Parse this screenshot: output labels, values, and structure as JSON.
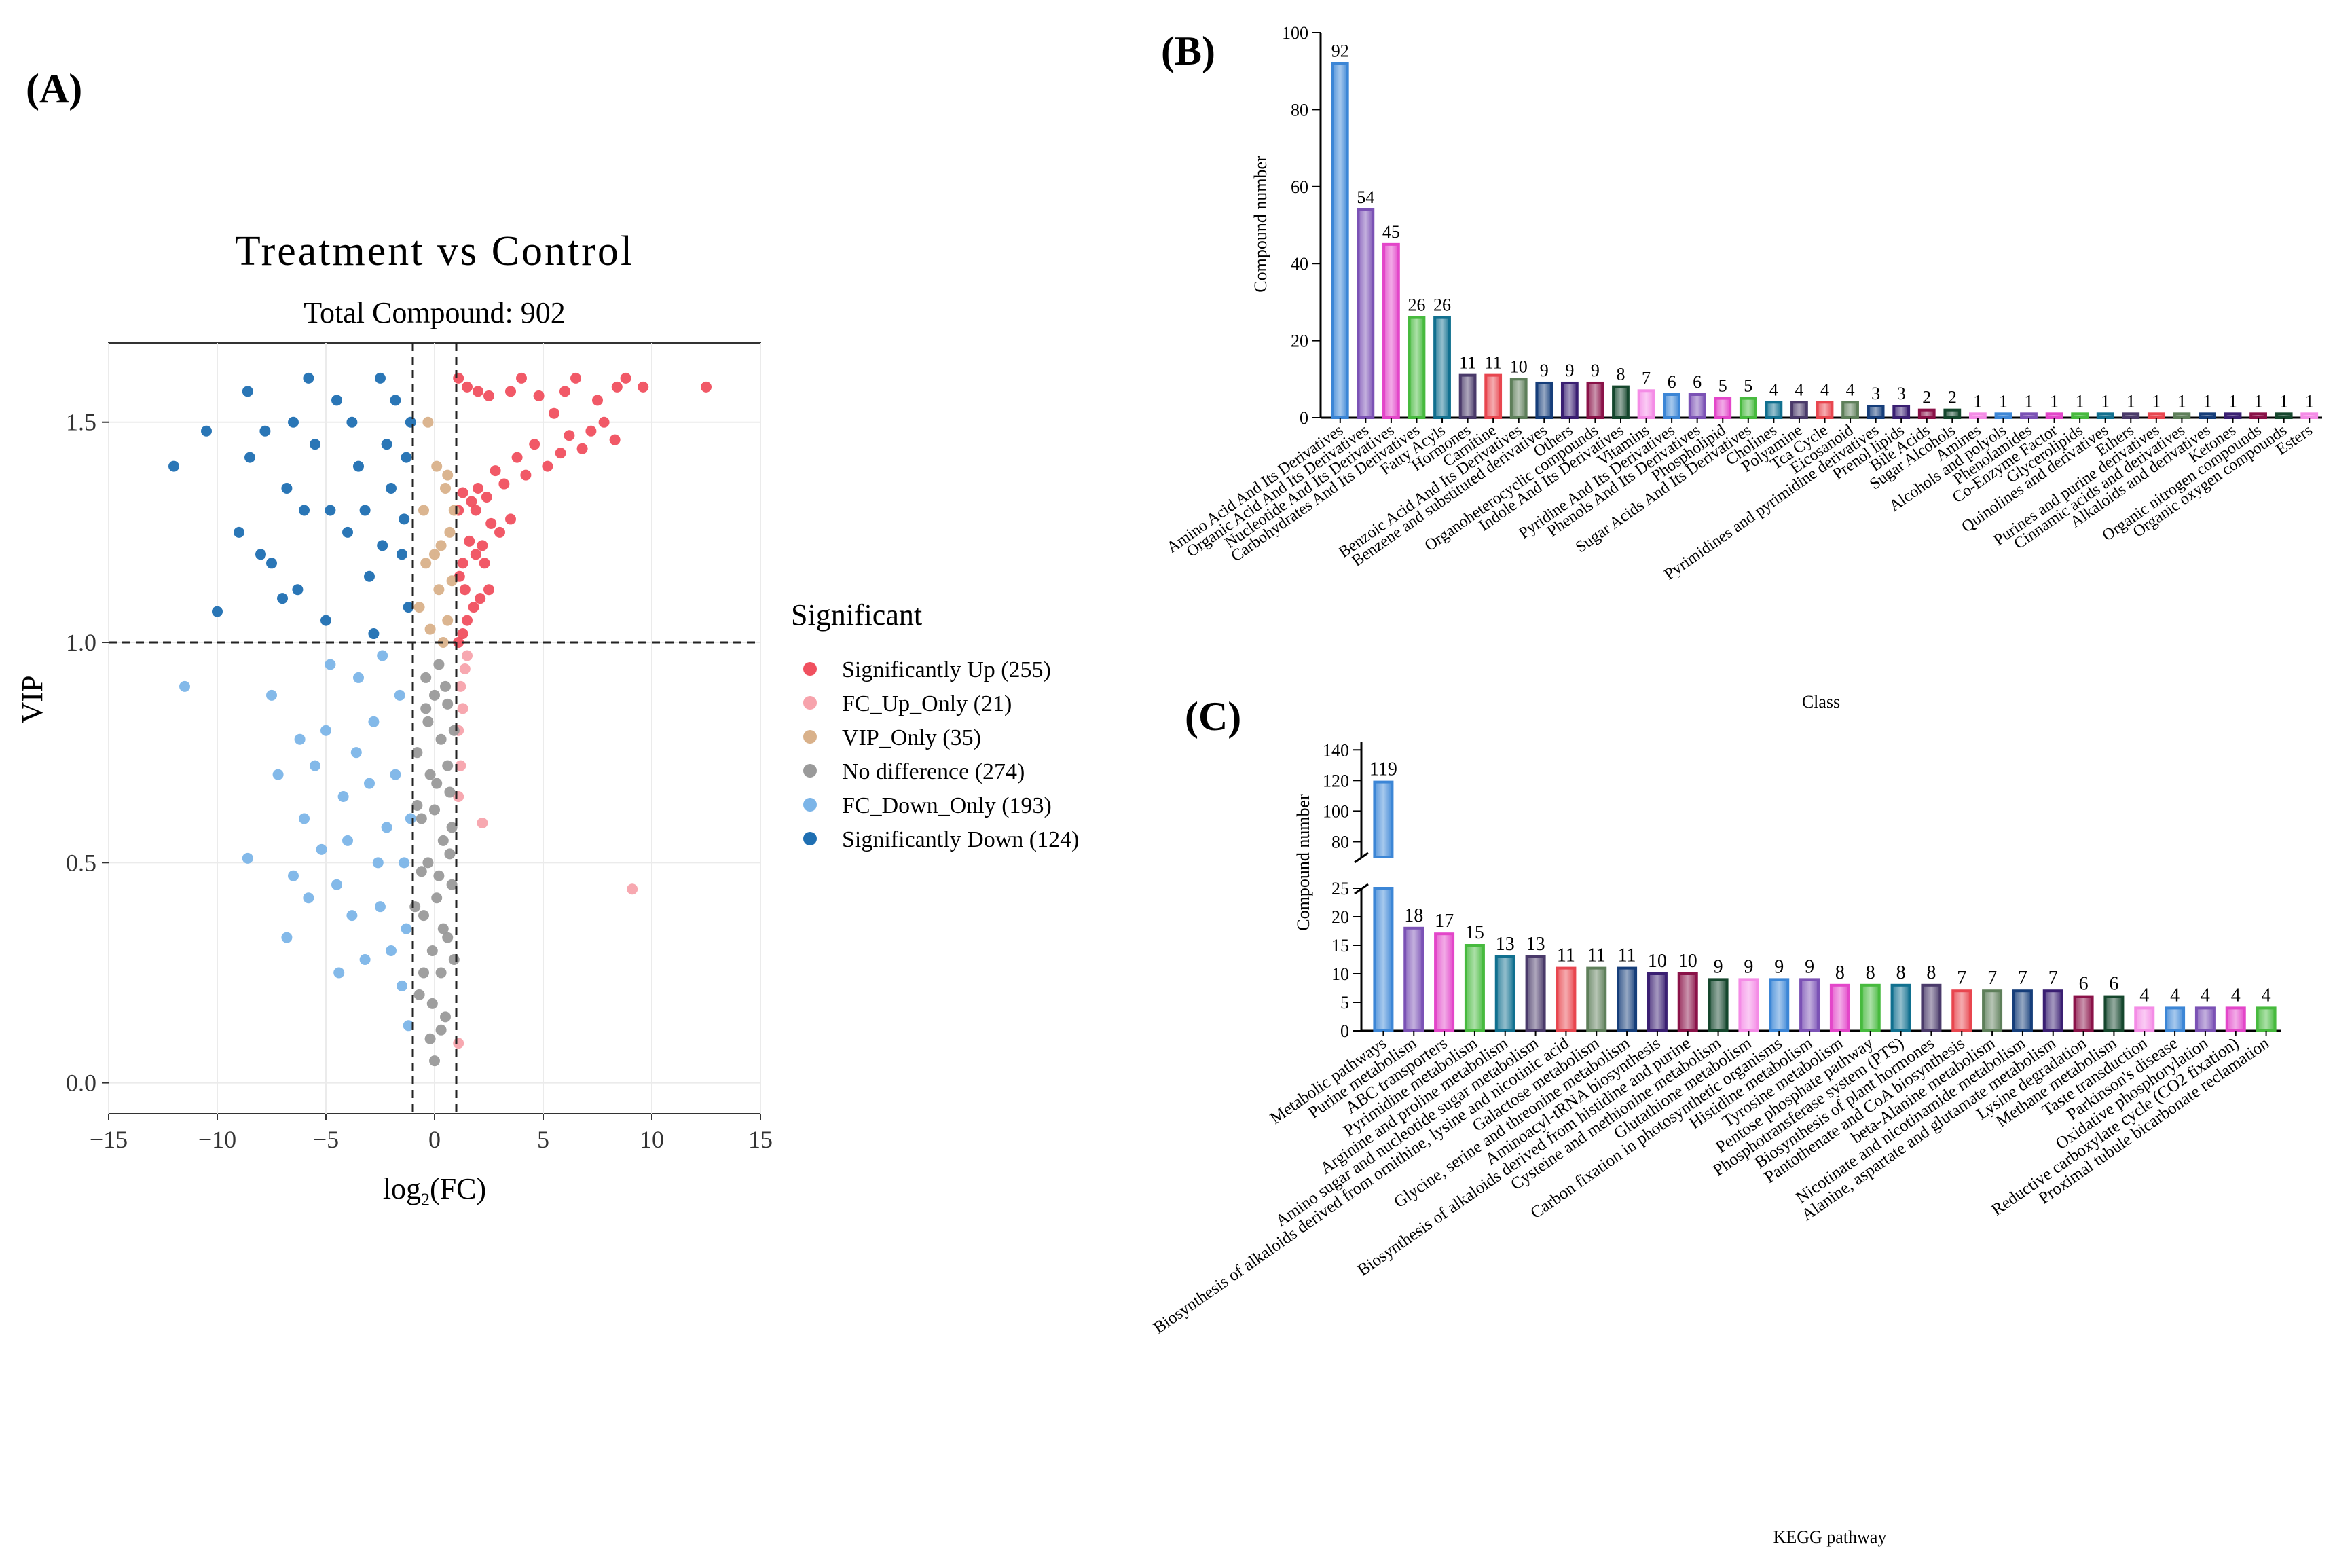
{
  "panels": {
    "a_label": "(A)",
    "b_label": "(B)",
    "c_label": "(C)"
  },
  "colors": {
    "significantly_up": "#F0505F",
    "fc_up_only": "#F7A3AC",
    "vip_only": "#D9B18A",
    "no_difference": "#9A9A9A",
    "fc_down_only": "#7CB5E8",
    "significantly_down": "#1F6FB2",
    "bar_palette": [
      "#3C86D6",
      "#7B52B5",
      "#E346C9",
      "#47BA3E",
      "#11708F",
      "#4A3A6A",
      "#E8464F",
      "#5E7F5A",
      "#163E7A",
      "#3A1F72",
      "#8A1248",
      "#15472D",
      "#F48CE6"
    ]
  },
  "chart_data": [
    {
      "id": "A",
      "type": "scatter",
      "title": "Treatment vs Control",
      "subtitle": "Total Compound: 902",
      "xlabel_main": "log",
      "xlabel_sub": "2",
      "xlabel_tail": "(FC)",
      "ylabel": "VIP",
      "xlim": [
        -15,
        15
      ],
      "ylim": [
        -0.07,
        1.68
      ],
      "xticks": [
        -15,
        -10,
        -5,
        0,
        5,
        10,
        15
      ],
      "xtick_labels": [
        "−15",
        "−10",
        "−5",
        "0",
        "5",
        "10",
        "15"
      ],
      "yticks": [
        0.0,
        0.5,
        1.0,
        1.5
      ],
      "ytick_labels": [
        "0.0",
        "0.5",
        "1.0",
        "1.5"
      ],
      "thresholds": {
        "fc": [
          -1,
          1
        ],
        "vip": 1.0
      },
      "grid": true,
      "legend_title": "Significant",
      "legend": [
        {
          "key": "significantly_up",
          "label": "Significantly Up (255)"
        },
        {
          "key": "fc_up_only",
          "label": "FC_Up_Only (21)"
        },
        {
          "key": "vip_only",
          "label": "VIP_Only (35)"
        },
        {
          "key": "no_difference",
          "label": "No difference (274)"
        },
        {
          "key": "fc_down_only",
          "label": "FC_Down_Only (193)"
        },
        {
          "key": "significantly_down",
          "label": "Significantly Down (124)"
        }
      ],
      "series": [
        {
          "key": "significantly_up",
          "count": 255,
          "points": [
            [
              12.5,
              1.58
            ],
            [
              9.6,
              1.58
            ],
            [
              8.4,
              1.58
            ],
            [
              8.8,
              1.6
            ],
            [
              7.5,
              1.55
            ],
            [
              6.5,
              1.6
            ],
            [
              6,
              1.57
            ],
            [
              5.5,
              1.52
            ],
            [
              4.8,
              1.56
            ],
            [
              4,
              1.6
            ],
            [
              3.5,
              1.57
            ],
            [
              2.5,
              1.56
            ],
            [
              2,
              1.57
            ],
            [
              1.5,
              1.58
            ],
            [
              1.1,
              1.6
            ],
            [
              8.3,
              1.46
            ],
            [
              7.8,
              1.5
            ],
            [
              7.2,
              1.48
            ],
            [
              6.8,
              1.44
            ],
            [
              6.2,
              1.47
            ],
            [
              5.8,
              1.43
            ],
            [
              5.2,
              1.4
            ],
            [
              4.6,
              1.45
            ],
            [
              4.2,
              1.38
            ],
            [
              3.8,
              1.42
            ],
            [
              3.2,
              1.36
            ],
            [
              2.8,
              1.39
            ],
            [
              2.4,
              1.33
            ],
            [
              2,
              1.35
            ],
            [
              1.7,
              1.32
            ],
            [
              1.3,
              1.34
            ],
            [
              1.1,
              1.3
            ],
            [
              3.5,
              1.28
            ],
            [
              3,
              1.25
            ],
            [
              2.6,
              1.27
            ],
            [
              2.2,
              1.22
            ],
            [
              1.9,
              1.2
            ],
            [
              1.6,
              1.23
            ],
            [
              1.3,
              1.18
            ],
            [
              1.15,
              1.15
            ],
            [
              2.5,
              1.12
            ],
            [
              2.1,
              1.1
            ],
            [
              1.8,
              1.08
            ],
            [
              1.5,
              1.05
            ],
            [
              1.3,
              1.02
            ],
            [
              1.1,
              1.0
            ],
            [
              1.9,
              1.3
            ],
            [
              1.4,
              1.12
            ],
            [
              2.3,
              1.18
            ]
          ]
        },
        {
          "key": "fc_up_only",
          "count": 21,
          "points": [
            [
              9.1,
              0.44
            ],
            [
              2.2,
              0.59
            ],
            [
              1.4,
              0.94
            ],
            [
              1.2,
              0.9
            ],
            [
              1.5,
              0.97
            ],
            [
              1.1,
              0.8
            ],
            [
              1.2,
              0.72
            ],
            [
              1.3,
              0.85
            ],
            [
              1.1,
              0.65
            ],
            [
              1.1,
              0.09
            ]
          ]
        },
        {
          "key": "vip_only",
          "count": 35,
          "points": [
            [
              0.5,
              1.35
            ],
            [
              0.3,
              1.22
            ],
            [
              0.7,
              1.25
            ],
            [
              0.2,
              1.12
            ],
            [
              -0.4,
              1.18
            ],
            [
              0.6,
              1.05
            ],
            [
              -0.2,
              1.03
            ],
            [
              0.9,
              1.3
            ],
            [
              0.1,
              1.4
            ],
            [
              -0.7,
              1.08
            ],
            [
              0.4,
              1.0
            ],
            [
              0.8,
              1.14
            ],
            [
              -0.5,
              1.3
            ],
            [
              0.0,
              1.2
            ],
            [
              0.6,
              1.38
            ],
            [
              -0.3,
              1.5
            ]
          ]
        },
        {
          "key": "no_difference",
          "count": 274,
          "points": [
            [
              0.5,
              0.9
            ],
            [
              -0.4,
              0.85
            ],
            [
              0.3,
              0.78
            ],
            [
              -0.2,
              0.7
            ],
            [
              0.7,
              0.66
            ],
            [
              0,
              0.62
            ],
            [
              -0.6,
              0.6
            ],
            [
              0.4,
              0.55
            ],
            [
              -0.3,
              0.5
            ],
            [
              0.8,
              0.45
            ],
            [
              0.1,
              0.42
            ],
            [
              -0.5,
              0.38
            ],
            [
              0.6,
              0.33
            ],
            [
              -0.1,
              0.3
            ],
            [
              0.3,
              0.25
            ],
            [
              -0.7,
              0.2
            ],
            [
              0.5,
              0.15
            ],
            [
              0,
              0.05
            ],
            [
              -0.2,
              0.1
            ],
            [
              0.9,
              0.8
            ],
            [
              -0.8,
              0.75
            ],
            [
              0.2,
              0.95
            ],
            [
              -0.4,
              0.92
            ],
            [
              0.6,
              0.72
            ],
            [
              -0.6,
              0.48
            ],
            [
              0.4,
              0.35
            ],
            [
              0.8,
              0.58
            ],
            [
              -0.9,
              0.4
            ],
            [
              0.1,
              0.68
            ],
            [
              -0.3,
              0.82
            ],
            [
              0.7,
              0.52
            ],
            [
              -0.5,
              0.25
            ],
            [
              0.2,
              0.47
            ],
            [
              0.9,
              0.28
            ],
            [
              -0.8,
              0.63
            ],
            [
              0.0,
              0.88
            ],
            [
              -0.1,
              0.18
            ],
            [
              0.6,
              0.86
            ],
            [
              0.3,
              0.12
            ]
          ]
        },
        {
          "key": "fc_down_only",
          "count": 193,
          "points": [
            [
              -11.5,
              0.9
            ],
            [
              -8.6,
              0.51
            ],
            [
              -7.5,
              0.88
            ],
            [
              -6.8,
              0.33
            ],
            [
              -6.5,
              0.47
            ],
            [
              -6,
              0.6
            ],
            [
              -5.5,
              0.72
            ],
            [
              -5,
              0.8
            ],
            [
              -4.5,
              0.45
            ],
            [
              -4,
              0.55
            ],
            [
              -3.5,
              0.92
            ],
            [
              -3,
              0.68
            ],
            [
              -2.5,
              0.4
            ],
            [
              -2,
              0.3
            ],
            [
              -1.5,
              0.22
            ],
            [
              -1.2,
              0.13
            ],
            [
              -4.8,
              0.95
            ],
            [
              -3.8,
              0.38
            ],
            [
              -2.8,
              0.82
            ],
            [
              -2.2,
              0.58
            ],
            [
              -1.8,
              0.7
            ],
            [
              -1.4,
              0.5
            ],
            [
              -5.8,
              0.42
            ],
            [
              -6.2,
              0.78
            ],
            [
              -4.2,
              0.65
            ],
            [
              -3.2,
              0.28
            ],
            [
              -2.6,
              0.5
            ],
            [
              -1.6,
              0.88
            ],
            [
              -7.2,
              0.7
            ],
            [
              -5.2,
              0.53
            ],
            [
              -3.6,
              0.75
            ],
            [
              -1.3,
              0.35
            ],
            [
              -2.4,
              0.97
            ],
            [
              -4.4,
              0.25
            ],
            [
              -1.1,
              0.6
            ]
          ]
        },
        {
          "key": "significantly_down",
          "count": 124,
          "points": [
            [
              -12,
              1.4
            ],
            [
              -10.5,
              1.48
            ],
            [
              -10,
              1.07
            ],
            [
              -9,
              1.25
            ],
            [
              -8.5,
              1.42
            ],
            [
              -8.6,
              1.57
            ],
            [
              -8,
              1.2
            ],
            [
              -7.5,
              1.18
            ],
            [
              -7,
              1.1
            ],
            [
              -6.8,
              1.35
            ],
            [
              -6.5,
              1.5
            ],
            [
              -6,
              1.3
            ],
            [
              -5.5,
              1.45
            ],
            [
              -5,
              1.05
            ],
            [
              -4.5,
              1.55
            ],
            [
              -4,
              1.25
            ],
            [
              -3.5,
              1.4
            ],
            [
              -3,
              1.15
            ],
            [
              -2.5,
              1.6
            ],
            [
              -2,
              1.35
            ],
            [
              -1.5,
              1.2
            ],
            [
              -1.2,
              1.08
            ],
            [
              -1.1,
              1.5
            ],
            [
              -5.8,
              1.6
            ],
            [
              -4.8,
              1.3
            ],
            [
              -3.8,
              1.5
            ],
            [
              -2.8,
              1.02
            ],
            [
              -2.2,
              1.45
            ],
            [
              -1.8,
              1.55
            ],
            [
              -1.4,
              1.28
            ],
            [
              -7.8,
              1.48
            ],
            [
              -6.3,
              1.12
            ],
            [
              -3.2,
              1.3
            ],
            [
              -2.4,
              1.22
            ],
            [
              -1.3,
              1.42
            ]
          ]
        }
      ]
    },
    {
      "id": "B",
      "type": "bar",
      "xlabel": "Class",
      "ylabel": "Compound number",
      "ylim": [
        0,
        100
      ],
      "yticks": [
        0,
        20,
        40,
        60,
        80,
        100
      ],
      "categories": [
        "Amino Acid And Its Derivatives",
        "Organic Acid And Its Derivatives",
        "Nucleotide And Its Derivatives",
        "Carbohydrates And Its Derivatives",
        "Fatty Acyls",
        "Hormones",
        "Carnitine",
        "Benzoic Acid And Its Derivatives",
        "Benzene and substituted derivatives",
        "Others",
        "Organoheterocyclic compounds",
        "Indole And Its Derivatives",
        "Vitamins",
        "Pyridine And Its Derivatives",
        "Phenols And Its Derivatives",
        "Phospholipid",
        "Sugar Acids And Its Derivatives",
        "Cholines",
        "Polyamine",
        "Tca Cycle",
        "Eicosanoid",
        "Pyrimidines and pyrimidine derivatives",
        "Prenol lipids",
        "Bile Acids",
        "Sugar Alcohols",
        "Amines",
        "Alcohols and polyols",
        "Phenolamides",
        "Co-Enzyme Factor",
        "Glycerolipids",
        "Quinolines and derivatives",
        "Ethers",
        "Purines and purine derivatives",
        "Cinnamic acids and derivatives",
        "Alkaloids and derivatives",
        "Ketones",
        "Organic nitrogen compounds",
        "Organic oxygen compounds",
        "Esters"
      ],
      "values": [
        92,
        54,
        45,
        26,
        26,
        11,
        11,
        10,
        9,
        9,
        9,
        8,
        7,
        6,
        6,
        5,
        5,
        4,
        4,
        4,
        4,
        3,
        3,
        2,
        2,
        1,
        1,
        1,
        1,
        1,
        1,
        1,
        1,
        1,
        1,
        1,
        1,
        1,
        1
      ]
    },
    {
      "id": "C",
      "type": "bar",
      "xlabel": "KEGG pathway",
      "ylabel": "Compound number",
      "y_break": [
        25,
        70
      ],
      "ylim_lower": [
        0,
        25
      ],
      "ylim_upper": [
        70,
        145
      ],
      "yticks_lower": [
        0,
        5,
        10,
        15,
        20,
        25
      ],
      "yticks_upper": [
        80,
        100,
        120,
        140
      ],
      "categories": [
        "Metabolic pathways",
        "Purine metabolism",
        "ABC transporters",
        "Pyrimidine metabolism",
        "Arginine and proline metabolism",
        "Amino sugar and nucleotide sugar metabolism",
        "Biosynthesis of alkaloids derived from ornithine, lysine and nicotinic acid",
        "Galactose metabolism",
        "Glycine, serine and threonine metabolism",
        "Aminoacyl-tRNA biosynthesis",
        "Biosynthesis of alkaloids derived from histidine and purine",
        "Cysteine and methionine metabolism",
        "Glutathione metabolism",
        "Carbon fixation in photosynthetic organisms",
        "Histidine metabolism",
        "Tyrosine metabolism",
        "Pentose phosphate pathway",
        "Phosphotransferase system (PTS)",
        "Biosynthesis of plant hormones",
        "Pantothenate and CoA biosynthesis",
        "beta-Alanine metabolism",
        "Nicotinate and nicotinamide metabolism",
        "Alanine, aspartate and glutamate metabolism",
        "Lysine degradation",
        "Methane metabolism",
        "Taste transduction",
        "Parkinson's disease",
        "Oxidative phosphorylation",
        "Reductive carboxylate cycle (CO2 fixation)",
        "Proximal tubule bicarbonate reclamation"
      ],
      "values": [
        119,
        18,
        17,
        15,
        13,
        13,
        11,
        11,
        11,
        10,
        10,
        9,
        9,
        9,
        9,
        8,
        8,
        8,
        8,
        7,
        7,
        7,
        7,
        6,
        6,
        4,
        4,
        4,
        4,
        4
      ]
    }
  ]
}
